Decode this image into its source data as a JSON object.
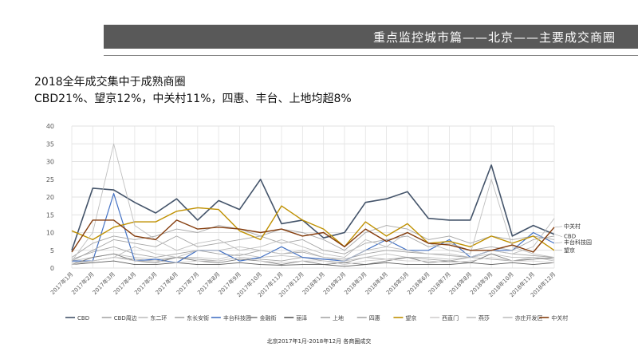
{
  "header": {
    "title": "重点监控城市篇——北京——主要成交商圈"
  },
  "headline": {
    "line1": "2018全年成交集中于成熟商圈",
    "line2": "CBD21%、望京12%，中关村11%，四惠、丰台、上地均超8%"
  },
  "source_note": "北京2017年1月-2018年12月 各商圈成交",
  "colors": {
    "header_bg": "#595959",
    "cbd": "#44546a",
    "fengtai": "#4472c4",
    "wangjing": "#bf9000",
    "zhongguancun": "#843c0c",
    "gray_series": "#a6a6a6"
  },
  "chart_data": {
    "type": "line",
    "ylim": [
      0,
      40
    ],
    "yticks": [
      0,
      5,
      10,
      15,
      20,
      25,
      30,
      35,
      40
    ],
    "grid": true,
    "legend_position": "bottom",
    "x": [
      "2017年1月",
      "2017年2月",
      "2017年3月",
      "2017年4月",
      "2017年5月",
      "2017年6月",
      "2017年7月",
      "2017年8月",
      "2017年9月",
      "2017年10月",
      "2017年11月",
      "2017年12月",
      "2018年1月",
      "2018年2月",
      "2018年3月",
      "2018年4月",
      "2018年5月",
      "2018年6月",
      "2018年7月",
      "2018年8月",
      "2018年9月",
      "2018年10月",
      "2018年11月",
      "2018年12月"
    ],
    "series": [
      {
        "name": "CBD",
        "color": "#44546a",
        "width": 1.6,
        "end_label": "CBD",
        "values": [
          5,
          22.5,
          22,
          18.5,
          15.5,
          19.5,
          13.5,
          19,
          16.5,
          25,
          12.5,
          13.5,
          8.5,
          10,
          18.5,
          19.5,
          21.5,
          14,
          13.5,
          13.5,
          29,
          9,
          12,
          9.5
        ]
      },
      {
        "name": "CBD周边",
        "color": "#a6a6a6",
        "width": 0.9,
        "values": [
          1,
          2,
          3,
          2.5,
          2,
          3,
          2.5,
          2,
          3,
          2.5,
          2,
          3,
          2,
          1.5,
          3,
          2.5,
          3,
          2.5,
          2,
          3,
          2.5,
          2,
          3,
          2.5
        ]
      },
      {
        "name": "东二环",
        "color": "#bfbfbf",
        "width": 0.9,
        "values": [
          2,
          3,
          4,
          3,
          2.5,
          3,
          3,
          2.5,
          4,
          3,
          3.5,
          3,
          2.5,
          2,
          3,
          4,
          3,
          3,
          2.5,
          3,
          4,
          3,
          3,
          2
        ]
      },
      {
        "name": "东长安街",
        "color": "#a6a6a6",
        "width": 0.9,
        "values": [
          2.5,
          4.5,
          6,
          4,
          3,
          4,
          5,
          4,
          3.5,
          5,
          4,
          4.5,
          3,
          2.5,
          4,
          5,
          4.5,
          4,
          3.5,
          3,
          5,
          4,
          3.5,
          3
        ]
      },
      {
        "name": "丰台科技园",
        "color": "#4472c4",
        "width": 1.2,
        "end_label": "丰台科技园",
        "values": [
          2,
          2,
          21,
          2,
          2.5,
          1.5,
          5,
          5,
          2,
          3,
          6,
          3,
          2.5,
          2,
          5,
          8,
          5,
          5,
          8,
          3,
          5,
          5,
          10,
          7
        ]
      },
      {
        "name": "金融街",
        "color": "#7f7f7f",
        "width": 0.9,
        "values": [
          1,
          3,
          4,
          2,
          1.5,
          3,
          2,
          1.5,
          2.5,
          2,
          1,
          2,
          1,
          1.5,
          1,
          2,
          3,
          1.5,
          2,
          1.5,
          4,
          2,
          2.5,
          3
        ]
      },
      {
        "name": "丽泽",
        "color": "#595959",
        "width": 0.9,
        "values": [
          1,
          1.5,
          2,
          1,
          1,
          1.5,
          1,
          1,
          1.5,
          1,
          0.8,
          1,
          1,
          0.5,
          1,
          1.5,
          1,
          1,
          1,
          1.5,
          1,
          1.5,
          1,
          1.5
        ]
      },
      {
        "name": "上地",
        "color": "#a6a6a6",
        "width": 0.9,
        "values": [
          2,
          5,
          8,
          7,
          6,
          9,
          6,
          7,
          8,
          9,
          7,
          8,
          5,
          4,
          7,
          8,
          9,
          6,
          7,
          5,
          6,
          5,
          8,
          9
        ]
      },
      {
        "name": "四惠",
        "color": "#a6a6a6",
        "width": 0.9,
        "values": [
          3,
          7,
          9,
          8,
          9,
          11,
          10,
          12,
          11,
          9,
          11,
          10,
          8,
          5,
          10,
          12,
          11,
          8,
          9,
          7,
          9,
          8,
          9,
          8
        ]
      },
      {
        "name": "望京",
        "color": "#bf9000",
        "width": 1.4,
        "end_label": "望京",
        "values": [
          10.5,
          8,
          11.5,
          13,
          13,
          16,
          17,
          16.5,
          10.5,
          8,
          17.5,
          13.5,
          11,
          6,
          13,
          9,
          12.5,
          7,
          7.5,
          6,
          9,
          7,
          9,
          5
        ]
      },
      {
        "name": "西直门",
        "color": "#d0cece",
        "width": 0.9,
        "values": [
          1,
          2,
          3,
          2,
          2,
          1.5,
          2,
          2,
          3,
          2,
          1.5,
          2,
          2,
          1,
          2,
          2.5,
          2,
          2,
          1.5,
          2,
          3,
          2,
          2,
          1.5
        ]
      },
      {
        "name": "燕莎",
        "color": "#bfbfbf",
        "width": 0.9,
        "values": [
          2,
          10,
          35,
          12,
          8,
          5,
          7,
          8,
          5,
          6,
          8,
          6,
          4,
          3,
          8,
          6,
          10,
          7,
          5,
          4,
          25,
          6,
          4,
          3
        ]
      },
      {
        "name": "亦庄开发区",
        "color": "#bfbfbf",
        "width": 0.9,
        "values": [
          1.5,
          2,
          3,
          6,
          4,
          3,
          5,
          5,
          6,
          5,
          4,
          5,
          3,
          2,
          5,
          6,
          5,
          4,
          4,
          3,
          5,
          4,
          6,
          14
        ]
      },
      {
        "name": "中关村",
        "color": "#843c0c",
        "width": 1.4,
        "end_label": "中关村",
        "values": [
          4.5,
          13.5,
          13.5,
          9,
          8,
          13.5,
          11,
          11.5,
          11,
          10,
          11,
          9,
          10,
          6,
          11,
          7.5,
          10,
          7,
          6.5,
          5,
          5,
          6.5,
          4.5,
          11.5
        ]
      }
    ]
  }
}
